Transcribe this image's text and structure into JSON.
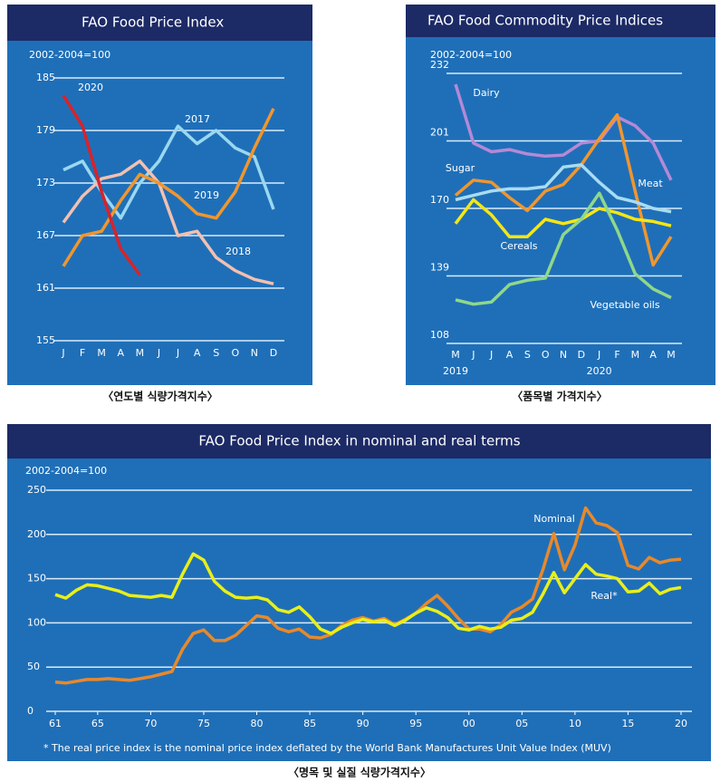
{
  "chart_data": [
    {
      "type": "line",
      "title": "FAO Food Price Index",
      "y_unit": "2002-2004=100",
      "categories": [
        "J",
        "F",
        "M",
        "A",
        "M",
        "J",
        "J",
        "A",
        "S",
        "O",
        "N",
        "D"
      ],
      "ylim": [
        155,
        185
      ],
      "yticks": [
        155,
        161,
        167,
        173,
        179,
        185
      ],
      "grid": true,
      "series": [
        {
          "name": "2017",
          "color": "#9ad8f0",
          "values": [
            174.5,
            175.5,
            172,
            169,
            173,
            175.5,
            179.5,
            177.5,
            179,
            177,
            176,
            170
          ]
        },
        {
          "name": "2018",
          "color": "#f2c0b0",
          "values": [
            168.5,
            171.5,
            173.5,
            174,
            175.5,
            173,
            167,
            167.5,
            164.5,
            163,
            162,
            161.5
          ]
        },
        {
          "name": "2019",
          "color": "#f0962e",
          "values": [
            163.5,
            167,
            167.5,
            171,
            174,
            173,
            171.5,
            169.5,
            169,
            172,
            177,
            181.5
          ]
        },
        {
          "name": "2020",
          "color": "#d8232a",
          "values": [
            183,
            179.5,
            172,
            165.5,
            162.5,
            null,
            null,
            null,
            null,
            null,
            null,
            null
          ]
        }
      ]
    },
    {
      "type": "line",
      "title": "FAO Food Commodity Price Indices",
      "y_unit": "2002-2004=100",
      "categories": [
        "M",
        "J",
        "J",
        "A",
        "S",
        "O",
        "N",
        "D",
        "J",
        "F",
        "M",
        "A",
        "M"
      ],
      "year_labels": [
        "2019",
        null,
        null,
        null,
        null,
        null,
        null,
        null,
        "2020",
        null,
        null,
        null,
        null
      ],
      "ylim": [
        108,
        232
      ],
      "yticks": [
        108,
        139,
        170,
        201,
        232
      ],
      "grid": true,
      "series": [
        {
          "name": "Dairy",
          "color": "#b589d6",
          "values": [
            227,
            200,
            196,
            197,
            195,
            194,
            194.5,
            200,
            201,
            212,
            208,
            200,
            183
          ]
        },
        {
          "name": "Sugar",
          "color": "#f0962e",
          "values": [
            176,
            183,
            182,
            175,
            169,
            178,
            181,
            190,
            202,
            213,
            178,
            144,
            157
          ]
        },
        {
          "name": "Meat",
          "color": "#a8dcf2",
          "values": [
            174,
            176,
            178,
            179,
            179,
            180,
            189,
            190,
            182,
            175,
            173,
            170,
            168.5
          ]
        },
        {
          "name": "Cereals",
          "color": "#f5e614",
          "values": [
            163,
            174,
            167,
            157,
            157,
            165,
            163,
            165,
            170,
            168,
            165,
            164,
            162
          ]
        },
        {
          "name": "Vegetable oils",
          "color": "#8fd88a",
          "values": [
            128,
            126,
            127,
            135,
            137,
            138,
            158,
            165,
            177,
            160,
            140,
            133,
            129
          ]
        }
      ]
    },
    {
      "type": "line",
      "title": "FAO Food Price Index in nominal and real terms",
      "y_unit": "2002-2004=100",
      "note": "* The real price index is the nominal price index deflated by the World Bank Manufactures Unit Value Index (MUV)",
      "x": [
        1961,
        1962,
        1963,
        1964,
        1965,
        1966,
        1967,
        1968,
        1969,
        1970,
        1971,
        1972,
        1973,
        1974,
        1975,
        1976,
        1977,
        1978,
        1979,
        1980,
        1981,
        1982,
        1983,
        1984,
        1985,
        1986,
        1987,
        1988,
        1989,
        1990,
        1991,
        1992,
        1993,
        1994,
        1995,
        1996,
        1997,
        1998,
        1999,
        2000,
        2001,
        2002,
        2003,
        2004,
        2005,
        2006,
        2007,
        2008,
        2009,
        2010,
        2011,
        2012,
        2013,
        2014,
        2015,
        2016,
        2017,
        2018,
        2019,
        2020
      ],
      "xlim": [
        1961,
        2020
      ],
      "xticks": [
        {
          "value": 1961,
          "label": "61"
        },
        {
          "value": 1965,
          "label": "65"
        },
        {
          "value": 1970,
          "label": "70"
        },
        {
          "value": 1975,
          "label": "75"
        },
        {
          "value": 1980,
          "label": "80"
        },
        {
          "value": 1985,
          "label": "85"
        },
        {
          "value": 1990,
          "label": "90"
        },
        {
          "value": 1995,
          "label": "95"
        },
        {
          "value": 2000,
          "label": "00"
        },
        {
          "value": 2005,
          "label": "05"
        },
        {
          "value": 2010,
          "label": "10"
        },
        {
          "value": 2015,
          "label": "15"
        },
        {
          "value": 2020,
          "label": "20"
        }
      ],
      "ylim": [
        0,
        250
      ],
      "yticks": [
        0,
        50,
        100,
        150,
        200,
        250
      ],
      "grid": true,
      "series": [
        {
          "name": "Nominal",
          "color": "#e8892b",
          "values": [
            33,
            32,
            34,
            36,
            36,
            37,
            36,
            35,
            37,
            39,
            42,
            45,
            70,
            88,
            92,
            80,
            80,
            86,
            97,
            108,
            106,
            94,
            90,
            93,
            84,
            83,
            87,
            97,
            103,
            106,
            102,
            105,
            98,
            104,
            111,
            122,
            131,
            119,
            105,
            93,
            93,
            90,
            98,
            112,
            118,
            127,
            161,
            201,
            160,
            188,
            230,
            213,
            210,
            202,
            165,
            161,
            174,
            168,
            171,
            172
          ]
        },
        {
          "name": "Real*",
          "color": "#e8ef1a",
          "values": [
            132,
            128,
            137,
            143,
            142,
            139,
            136,
            131,
            130,
            129,
            131,
            129,
            155,
            178,
            171,
            147,
            136,
            129,
            128,
            129,
            126,
            115,
            112,
            118,
            107,
            93,
            88,
            95,
            100,
            104,
            101,
            103,
            97,
            103,
            111,
            117,
            113,
            106,
            94,
            92,
            96,
            93,
            95,
            103,
            105,
            112,
            133,
            157,
            134,
            150,
            166,
            155,
            153,
            150,
            135,
            136,
            145,
            133,
            138,
            140
          ]
        }
      ]
    }
  ],
  "captions": [
    "〈연도별 식량가격지수〉",
    "〈품목별 가격지수〉",
    "〈명목 및 실질 식량가격지수〉"
  ]
}
